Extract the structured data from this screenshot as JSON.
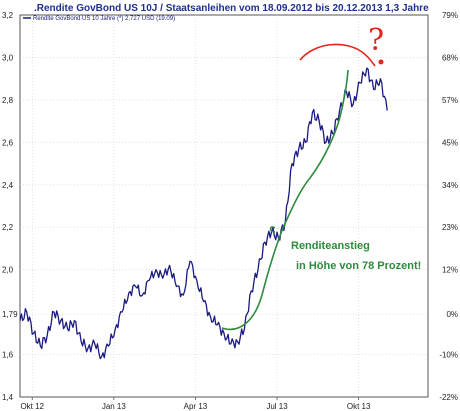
{
  "chart_data": {
    "type": "line",
    "title": ".Rendite GovBond US 10J / Staatsanleihen vom 18.09.2012 bis 20.12.2013 1,3 Jahre",
    "legend": "Rendite GovBond US 10 Jahre (*) 2,727 USD (19.09)",
    "legend_placement": "top-left",
    "grid": true,
    "x_ticks": [
      "Okt 12",
      "Jan 13",
      "Apr 13",
      "Jul 13",
      "Okt 13"
    ],
    "y_left_ticks": [
      "1,4",
      "1,6",
      "1,79",
      "2,0",
      "2,2",
      "2,4",
      "2,6",
      "2,8",
      "3,0",
      "3,2"
    ],
    "y_left_tick_values": [
      1.4,
      1.6,
      1.79,
      2.0,
      2.2,
      2.4,
      2.6,
      2.8,
      3.0,
      3.2
    ],
    "y_right_ticks": [
      "-22%",
      "-10%",
      "0%",
      "12%",
      "23%",
      "34%",
      "45%",
      "57%",
      "68%",
      "79%"
    ],
    "ylim": [
      1.4,
      3.2
    ],
    "xlim_months": [
      0,
      15
    ],
    "series": [
      {
        "name": "Rendite GovBond US 10 Jahre",
        "color": "#1a1a80",
        "points": [
          [
            0.0,
            1.76
          ],
          [
            0.25,
            1.8
          ],
          [
            0.5,
            1.7
          ],
          [
            0.75,
            1.64
          ],
          [
            1.0,
            1.69
          ],
          [
            1.25,
            1.8
          ],
          [
            1.5,
            1.76
          ],
          [
            1.75,
            1.72
          ],
          [
            2.0,
            1.76
          ],
          [
            2.25,
            1.66
          ],
          [
            2.5,
            1.63
          ],
          [
            2.75,
            1.65
          ],
          [
            3.0,
            1.59
          ],
          [
            3.25,
            1.64
          ],
          [
            3.5,
            1.72
          ],
          [
            3.75,
            1.8
          ],
          [
            4.0,
            1.89
          ],
          [
            4.25,
            1.92
          ],
          [
            4.5,
            1.88
          ],
          [
            4.75,
            1.95
          ],
          [
            5.0,
            2.0
          ],
          [
            5.25,
            1.96
          ],
          [
            5.5,
            2.02
          ],
          [
            5.75,
            1.92
          ],
          [
            6.0,
            1.88
          ],
          [
            6.25,
            2.04
          ],
          [
            6.5,
            1.95
          ],
          [
            6.75,
            1.85
          ],
          [
            7.0,
            1.78
          ],
          [
            7.25,
            1.74
          ],
          [
            7.5,
            1.7
          ],
          [
            7.75,
            1.65
          ],
          [
            8.0,
            1.66
          ],
          [
            8.25,
            1.72
          ],
          [
            8.5,
            1.9
          ],
          [
            8.75,
            2.0
          ],
          [
            9.0,
            2.13
          ],
          [
            9.25,
            2.18
          ],
          [
            9.5,
            2.15
          ],
          [
            9.75,
            2.22
          ],
          [
            10.0,
            2.5
          ],
          [
            10.25,
            2.57
          ],
          [
            10.5,
            2.6
          ],
          [
            10.75,
            2.74
          ],
          [
            11.0,
            2.7
          ],
          [
            11.25,
            2.6
          ],
          [
            11.5,
            2.64
          ],
          [
            11.75,
            2.75
          ],
          [
            12.0,
            2.84
          ],
          [
            12.25,
            2.78
          ],
          [
            12.5,
            2.88
          ],
          [
            12.75,
            2.95
          ],
          [
            13.0,
            2.85
          ],
          [
            13.25,
            2.9
          ],
          [
            13.5,
            2.75
          ]
        ]
      }
    ],
    "annotations": [
      {
        "text": "Renditeanstieg",
        "color": "#2e8b3e"
      },
      {
        "text": "in Höhe von 78 Prozent!",
        "color": "#2e8b3e"
      },
      {
        "text": "?",
        "color": "#e0261c"
      }
    ]
  }
}
